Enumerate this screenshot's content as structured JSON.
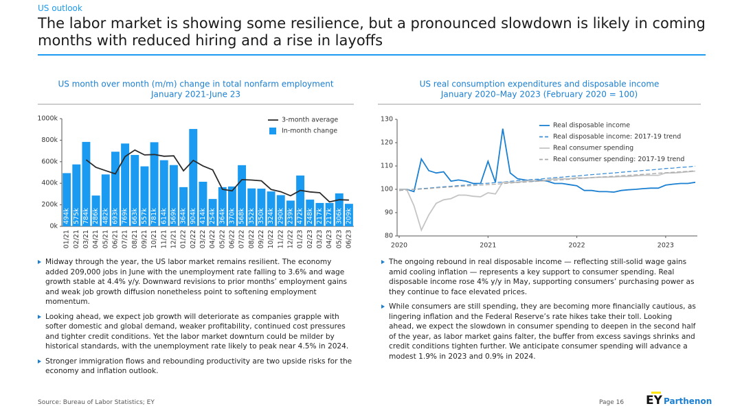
{
  "header": {
    "kicker": "US outlook",
    "title": "The labor market is showing some resilience, but a pronounced slowdown is likely in coming months with reduced hiring and a rise in layoffs"
  },
  "chart_data": [
    {
      "type": "bar",
      "title": "US month over month (m/m) change in total nonfarm employment",
      "subtitle": "January 2021-June 23",
      "categories": [
        "01/21",
        "02/21",
        "03/21",
        "04/21",
        "05/21",
        "06/21",
        "07/21",
        "08/21",
        "09/21",
        "10/21",
        "11/21",
        "12/21",
        "01/22",
        "02/22",
        "03/22",
        "04/22",
        "05/22",
        "06/22",
        "07/22",
        "08/22",
        "09/22",
        "10/22",
        "11/22",
        "12/22",
        "01/23",
        "02/23",
        "03/23",
        "04/23",
        "05/23",
        "06/23"
      ],
      "ylim": [
        0,
        1000
      ],
      "yticks": [
        {
          "value": 0,
          "label": "0k"
        },
        {
          "value": 200,
          "label": "200k"
        },
        {
          "value": 400,
          "label": "400k"
        },
        {
          "value": 600,
          "label": "600k"
        },
        {
          "value": 800,
          "label": "800k"
        },
        {
          "value": 1000,
          "label": "1000k"
        }
      ],
      "grid": false,
      "legend": "upper right",
      "series": [
        {
          "name": "3-month average",
          "type": "line",
          "color": "#2b2b2b",
          "values": [
            null,
            null,
            618,
            548,
            517,
            487,
            648,
            708,
            663,
            667,
            651,
            655,
            516,
            612,
            561,
            524,
            344,
            329,
            434,
            430,
            423,
            342,
            321,
            284,
            334,
            320,
            312,
            227,
            247,
            244
          ]
        },
        {
          "name": "In-month change",
          "type": "bar",
          "color": "#1a9af0",
          "values": [
            494,
            575,
            784,
            286,
            482,
            693,
            769,
            663,
            557,
            781,
            614,
            569,
            364,
            904,
            414,
            254,
            364,
            370,
            568,
            352,
            350,
            324,
            290,
            239,
            472,
            248,
            217,
            217,
            306,
            209
          ],
          "value_labels": [
            "494k",
            "575k",
            "784k",
            "286k",
            "482k",
            "693k",
            "769k",
            "663k",
            "557k",
            "781k",
            "614k",
            "569k",
            "364k",
            "904k",
            "414k",
            "254k",
            "364k",
            "370k",
            "568k",
            "352k",
            "350k",
            "324k",
            "290k",
            "239k",
            "472k",
            "248k",
            "217k",
            "217k",
            "306k",
            "209k"
          ]
        }
      ]
    },
    {
      "type": "line",
      "title": "US real consumption expenditures and disposable income",
      "subtitle": "January 2020–May 2023 (February 2020 = 100)",
      "categories": [
        "2020",
        null,
        null,
        null,
        null,
        null,
        null,
        null,
        null,
        null,
        null,
        null,
        "2021",
        null,
        null,
        null,
        null,
        null,
        null,
        null,
        null,
        null,
        null,
        null,
        "2022",
        null,
        null,
        null,
        null,
        null,
        null,
        null,
        null,
        null,
        null,
        null,
        "2023",
        null,
        null,
        null,
        null
      ],
      "ylim": [
        80,
        130
      ],
      "yticks": [
        80,
        90,
        100,
        110,
        120,
        130
      ],
      "grid": false,
      "legend": "upper right",
      "series": [
        {
          "name": "Real disposable income",
          "color": "#1a7fd0",
          "dash": false,
          "values": [
            100,
            100,
            99,
            113,
            108,
            107,
            107.5,
            103.5,
            104,
            103.5,
            102.5,
            102.5,
            112,
            103,
            126,
            107,
            104.5,
            104,
            103.5,
            104,
            103.5,
            102.5,
            102.5,
            102,
            101.5,
            99.5,
            99.5,
            99,
            99,
            98.8,
            99.5,
            99.8,
            100,
            100.3,
            100.5,
            100.5,
            101.8,
            102.2,
            102.5,
            102.5,
            103
          ]
        },
        {
          "name": "Real disposable income: 2017-19 trend",
          "color": "#3d8fd6",
          "dash": true,
          "values": [
            99.5,
            99.8,
            100.0,
            100.3,
            100.5,
            100.8,
            101.1,
            101.3,
            101.6,
            101.8,
            102.1,
            102.4,
            102.6,
            102.9,
            103.1,
            103.4,
            103.7,
            103.9,
            104.2,
            104.4,
            104.7,
            105.0,
            105.2,
            105.5,
            105.7,
            106.0,
            106.3,
            106.5,
            106.8,
            107.0,
            107.3,
            107.6,
            107.8,
            108.1,
            108.3,
            108.6,
            108.9,
            109.1,
            109.4,
            109.6,
            109.9
          ]
        },
        {
          "name": "Real consumer spending",
          "color": "#c4c4c4",
          "dash": false,
          "values": [
            100,
            100,
            93,
            82.5,
            89,
            94,
            95.5,
            96,
            97.5,
            97.5,
            97,
            96.8,
            98.5,
            98,
            103,
            103,
            103,
            103.5,
            103.8,
            103.5,
            104,
            104.5,
            104.5,
            104.5,
            105,
            104.8,
            105,
            105.2,
            105.2,
            105.3,
            105.5,
            105.5,
            105.8,
            106,
            106,
            106,
            107,
            107,
            107.2,
            107.5,
            107.8
          ]
        },
        {
          "name": "Real consumer spending: 2017-19 trend",
          "color": "#a8a8a8",
          "dash": true,
          "values": [
            99.5,
            99.7,
            99.9,
            100.1,
            100.3,
            100.6,
            100.8,
            101.0,
            101.2,
            101.4,
            101.6,
            101.8,
            102.0,
            102.2,
            102.4,
            102.7,
            102.9,
            103.1,
            103.3,
            103.5,
            103.7,
            103.9,
            104.1,
            104.3,
            104.5,
            104.8,
            105.0,
            105.2,
            105.4,
            105.6,
            105.8,
            106.0,
            106.2,
            106.4,
            106.6,
            106.9,
            107.1,
            107.3,
            107.5,
            107.7,
            107.9
          ]
        }
      ]
    }
  ],
  "body": {
    "left": [
      "Midway through the year, the US labor market remains resilient. The economy added 209,000 jobs in June with the unemployment rate falling to 3.6% and wage growth stable at 4.4% y/y. Downward revisions to prior months’ employment gains and weak job growth diffusion nonetheless point to softening employment momentum.",
      "Looking ahead, we expect job growth will deteriorate as companies grapple with softer domestic and global demand, weaker profitability, continued cost pressures and tighter credit conditions. Yet the labor market downturn could be milder by historical standards, with the unemployment rate likely to peak near 4.5% in 2024.",
      "Stronger immigration flows and rebounding productivity are two upside risks for the economy and inflation outlook."
    ],
    "right": [
      "The ongoing rebound in real disposable income — reflecting still-solid wage gains amid cooling inflation — represents a key support to consumer spending. Real disposable income rose 4% y/y in May, supporting consumers’ purchasing power as they continue to face elevated prices.",
      "While consumers are still spending, they are becoming more financially cautious, as lingering inflation and the Federal Reserve’s rate hikes take their toll. Looking ahead, we expect the slowdown in consumer spending to deepen in the second half of the year, as labor market gains falter, the buffer from excess savings shrinks and credit conditions tighten further. We anticipate consumer spending will advance a modest 1.9% in 2023 and 0.9% in 2024."
    ]
  },
  "footer": {
    "source": "Source: Bureau of Labor Statistics; EY",
    "page": "Page 16",
    "logo": "EY",
    "brand": "Parthenon"
  }
}
